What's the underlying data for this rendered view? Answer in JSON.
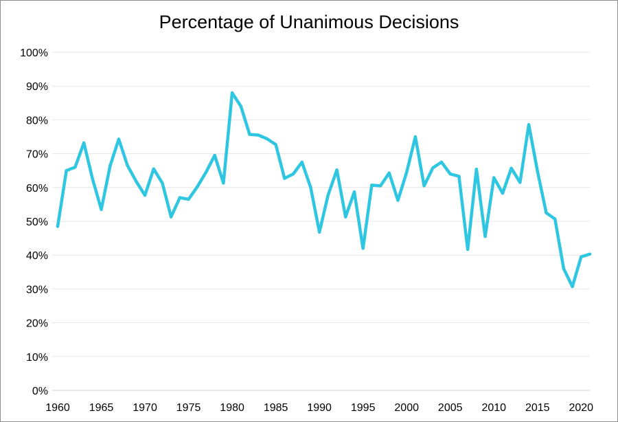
{
  "chart_data": {
    "type": "line",
    "title": "Percentage of Unanimous Decisions",
    "xlabel": "",
    "ylabel": "",
    "xlim": [
      1960,
      2021
    ],
    "ylim": [
      0,
      100
    ],
    "x_ticks": [
      1960,
      1965,
      1970,
      1975,
      1980,
      1985,
      1990,
      1995,
      2000,
      2005,
      2010,
      2015,
      2020
    ],
    "y_ticks": [
      0,
      10,
      20,
      30,
      40,
      50,
      60,
      70,
      80,
      90,
      100
    ],
    "y_tick_format": "percent",
    "grid": true,
    "legend": "none",
    "series_color": "#2ec6e0",
    "x": [
      1960,
      1961,
      1962,
      1963,
      1964,
      1965,
      1966,
      1967,
      1968,
      1969,
      1970,
      1971,
      1972,
      1973,
      1974,
      1975,
      1976,
      1977,
      1978,
      1979,
      1980,
      1981,
      1982,
      1983,
      1984,
      1985,
      1986,
      1987,
      1988,
      1989,
      1990,
      1991,
      1992,
      1993,
      1994,
      1995,
      1996,
      1997,
      1998,
      1999,
      2000,
      2001,
      2002,
      2003,
      2004,
      2005,
      2006,
      2007,
      2008,
      2009,
      2010,
      2011,
      2012,
      2013,
      2014,
      2015,
      2016,
      2017,
      2018,
      2019,
      2020,
      2021
    ],
    "series": [
      {
        "values": [
          48.5,
          65,
          66,
          73.2,
          62.5,
          53.5,
          66.3,
          74.3,
          66.5,
          61.8,
          57.7,
          65.5,
          61.3,
          51.3,
          57,
          56.5,
          60.2,
          64.5,
          69.5,
          61.3,
          88,
          84,
          75.7,
          75.5,
          74.4,
          72.7,
          62.7,
          64,
          67.5,
          60,
          46.8,
          57.8,
          65.2,
          51.3,
          58.7,
          42,
          60.7,
          60.5,
          64.3,
          56.2,
          64.5,
          75,
          60.5,
          65.8,
          67.5,
          64,
          63.3,
          41.7,
          65.4,
          45.5,
          62.9,
          58.3,
          65.7,
          61.5,
          78.6,
          64.8,
          52.5,
          50.7,
          36,
          30.7,
          39.5,
          40.3
        ]
      }
    ]
  }
}
